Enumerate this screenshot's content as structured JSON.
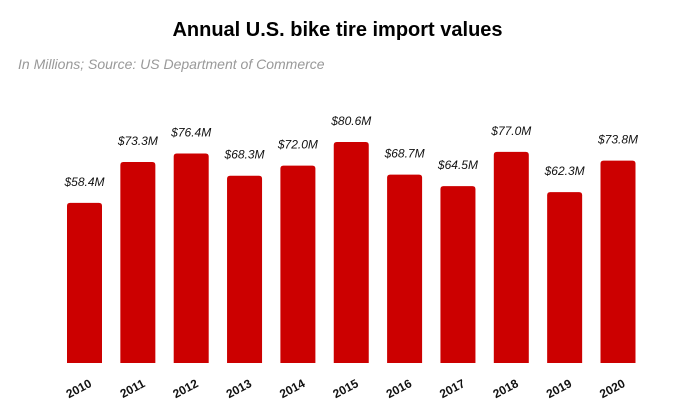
{
  "chart_data": {
    "type": "bar",
    "title": "Annual U.S. bike tire import values",
    "subtitle": "In Millions; Source: US Department of Commerce",
    "categories": [
      "2010",
      "2011",
      "2012",
      "2013",
      "2014",
      "2015",
      "2016",
      "2017",
      "2018",
      "2019",
      "2020"
    ],
    "values": [
      58.4,
      73.3,
      76.4,
      68.3,
      72.0,
      80.6,
      68.7,
      64.5,
      77.0,
      62.3,
      73.8
    ],
    "data_labels": [
      "$58.4M",
      "$73.3M",
      "$76.4M",
      "$68.3M",
      "$72.0M",
      "$80.6M",
      "$68.7M",
      "$64.5M",
      "$77.0M",
      "$62.3M",
      "$73.8M"
    ],
    "xlabel": "",
    "ylabel": "",
    "ylim": [
      0,
      80.6
    ],
    "grid": false,
    "bar_color": "#cc0000"
  }
}
